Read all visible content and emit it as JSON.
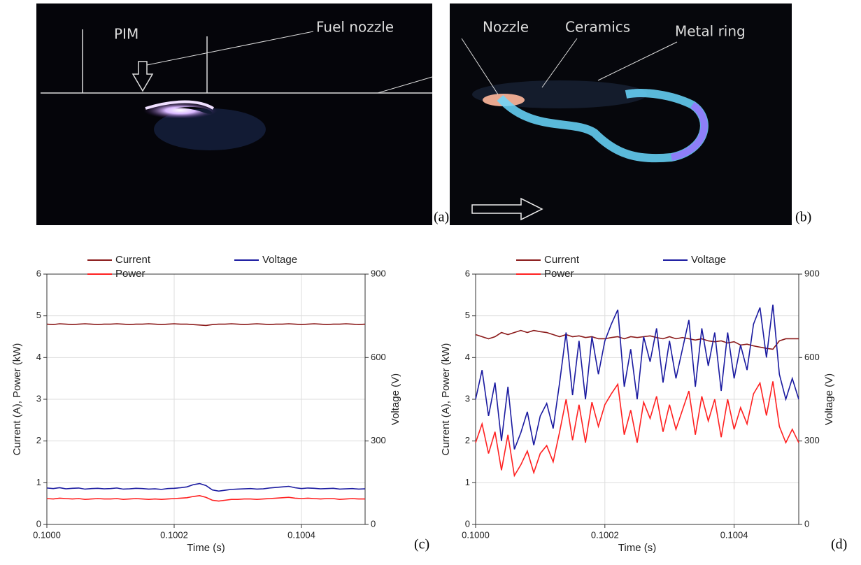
{
  "photos": [
    {
      "label": "(a)",
      "annotations": [
        "PIM",
        "Fuel nozzle"
      ]
    },
    {
      "label": "(b)",
      "annotations": [
        "Nozzle",
        "Ceramics",
        "Metal ring"
      ]
    }
  ],
  "chart_data": [
    {
      "type": "line",
      "label": "(c)",
      "x_label": "Time (s)",
      "y_label": "Current (A), Power (kW)",
      "y2_label": "Voltage (V)",
      "xlim": [
        0.1,
        0.1005
      ],
      "ylim": [
        0,
        6
      ],
      "y2lim": [
        0,
        900
      ],
      "grid": true,
      "legend": "top",
      "xticks": [
        {
          "value": 0.1,
          "label": "0.1000"
        },
        {
          "value": 0.1002,
          "label": "0.1002"
        },
        {
          "value": 0.1004,
          "label": "0.1004"
        }
      ],
      "yticks": [
        0,
        1,
        2,
        3,
        4,
        5,
        6
      ],
      "y2ticks": [
        0,
        300,
        600,
        900
      ],
      "x": [
        0.1,
        0.10001,
        0.10002,
        0.10003,
        0.10004,
        0.10005,
        0.10006,
        0.10007,
        0.10008,
        0.10009,
        0.1001,
        0.10011,
        0.10012,
        0.10013,
        0.10014,
        0.10015,
        0.10016,
        0.10017,
        0.10018,
        0.10019,
        0.1002,
        0.10021,
        0.10022,
        0.10023,
        0.10024,
        0.10025,
        0.10026,
        0.10027,
        0.10028,
        0.10029,
        0.1003,
        0.10031,
        0.10032,
        0.10033,
        0.10034,
        0.10035,
        0.10036,
        0.10037,
        0.10038,
        0.10039,
        0.1004,
        0.10041,
        0.10042,
        0.10043,
        0.10044,
        0.10045,
        0.10046,
        0.10047,
        0.10048,
        0.10049,
        0.1005
      ],
      "series": [
        {
          "name": "Current",
          "color": "#8b1a1a",
          "values": [
            4.8,
            4.79,
            4.81,
            4.8,
            4.79,
            4.8,
            4.81,
            4.8,
            4.79,
            4.8,
            4.8,
            4.81,
            4.8,
            4.79,
            4.8,
            4.8,
            4.81,
            4.8,
            4.79,
            4.8,
            4.81,
            4.8,
            4.8,
            4.79,
            4.78,
            4.77,
            4.79,
            4.8,
            4.8,
            4.81,
            4.8,
            4.79,
            4.8,
            4.81,
            4.8,
            4.79,
            4.8,
            4.8,
            4.81,
            4.8,
            4.79,
            4.8,
            4.81,
            4.8,
            4.79,
            4.8,
            4.8,
            4.81,
            4.8,
            4.79,
            4.8
          ]
        },
        {
          "name": "Voltage",
          "color": "#1a1aa0",
          "axis": "y2",
          "values": [
            131,
            129,
            132,
            128,
            130,
            131,
            127,
            129,
            130,
            128,
            129,
            131,
            127,
            128,
            130,
            129,
            127,
            128,
            126,
            129,
            130,
            132,
            135,
            143,
            147,
            140,
            124,
            120,
            123,
            126,
            127,
            128,
            129,
            127,
            128,
            131,
            133,
            135,
            137,
            132,
            129,
            131,
            130,
            128,
            129,
            130,
            127,
            128,
            129,
            127,
            128
          ]
        },
        {
          "name": "Power",
          "color": "#ff2020",
          "values": [
            0.62,
            0.61,
            0.63,
            0.62,
            0.61,
            0.62,
            0.6,
            0.61,
            0.62,
            0.61,
            0.61,
            0.62,
            0.6,
            0.61,
            0.62,
            0.61,
            0.6,
            0.61,
            0.6,
            0.61,
            0.62,
            0.63,
            0.64,
            0.67,
            0.69,
            0.65,
            0.58,
            0.56,
            0.58,
            0.6,
            0.6,
            0.61,
            0.61,
            0.6,
            0.61,
            0.62,
            0.63,
            0.64,
            0.65,
            0.63,
            0.62,
            0.63,
            0.62,
            0.61,
            0.62,
            0.62,
            0.6,
            0.61,
            0.62,
            0.61,
            0.61
          ]
        }
      ]
    },
    {
      "type": "line",
      "label": "(d)",
      "x_label": "Time (s)",
      "y_label": "Current (A), Power (kW)",
      "y2_label": "Voltage (V)",
      "xlim": [
        0.1,
        0.1005
      ],
      "ylim": [
        0,
        6
      ],
      "y2lim": [
        0,
        900
      ],
      "grid": true,
      "legend": "top",
      "xticks": [
        {
          "value": 0.1,
          "label": "0.1000"
        },
        {
          "value": 0.1002,
          "label": "0.1002"
        },
        {
          "value": 0.1004,
          "label": "0.1004"
        }
      ],
      "yticks": [
        0,
        1,
        2,
        3,
        4,
        5,
        6
      ],
      "y2ticks": [
        0,
        300,
        600,
        900
      ],
      "x": [
        0.1,
        0.10001,
        0.10002,
        0.10003,
        0.10004,
        0.10005,
        0.10006,
        0.10007,
        0.10008,
        0.10009,
        0.1001,
        0.10011,
        0.10012,
        0.10013,
        0.10014,
        0.10015,
        0.10016,
        0.10017,
        0.10018,
        0.10019,
        0.1002,
        0.10021,
        0.10022,
        0.10023,
        0.10024,
        0.10025,
        0.10026,
        0.10027,
        0.10028,
        0.10029,
        0.1003,
        0.10031,
        0.10032,
        0.10033,
        0.10034,
        0.10035,
        0.10036,
        0.10037,
        0.10038,
        0.10039,
        0.1004,
        0.10041,
        0.10042,
        0.10043,
        0.10044,
        0.10045,
        0.10046,
        0.10047,
        0.10048,
        0.10049,
        0.1005
      ],
      "series": [
        {
          "name": "Current",
          "color": "#8b1a1a",
          "values": [
            4.55,
            4.5,
            4.45,
            4.5,
            4.6,
            4.55,
            4.6,
            4.65,
            4.6,
            4.65,
            4.62,
            4.6,
            4.55,
            4.5,
            4.55,
            4.5,
            4.52,
            4.48,
            4.5,
            4.45,
            4.45,
            4.48,
            4.5,
            4.45,
            4.5,
            4.48,
            4.5,
            4.52,
            4.48,
            4.45,
            4.5,
            4.45,
            4.48,
            4.45,
            4.42,
            4.45,
            4.4,
            4.38,
            4.4,
            4.35,
            4.38,
            4.3,
            4.32,
            4.28,
            4.25,
            4.22,
            4.2,
            4.4,
            4.45,
            4.45,
            4.45
          ]
        },
        {
          "name": "Voltage",
          "color": "#1a1aa0",
          "axis": "y2",
          "values": [
            450,
            555,
            390,
            510,
            300,
            495,
            270,
            330,
            405,
            285,
            390,
            435,
            345,
            510,
            690,
            465,
            660,
            450,
            675,
            540,
            660,
            720,
            772,
            495,
            630,
            450,
            675,
            585,
            705,
            510,
            660,
            525,
            630,
            735,
            495,
            705,
            570,
            690,
            480,
            690,
            525,
            645,
            555,
            720,
            780,
            600,
            790,
            540,
            450,
            525,
            450
          ]
        },
        {
          "name": "Power",
          "color": "#ff2020",
          "values": [
            1.96,
            2.41,
            1.7,
            2.22,
            1.3,
            2.15,
            1.17,
            1.43,
            1.76,
            1.24,
            1.7,
            1.89,
            1.5,
            2.22,
            3.0,
            2.02,
            2.87,
            1.96,
            2.93,
            2.35,
            2.87,
            3.13,
            3.36,
            2.15,
            2.74,
            1.96,
            2.93,
            2.54,
            3.07,
            2.22,
            2.87,
            2.28,
            2.74,
            3.2,
            2.15,
            3.07,
            2.48,
            3.0,
            2.09,
            3.0,
            2.28,
            2.8,
            2.41,
            3.13,
            3.39,
            2.61,
            3.43,
            2.35,
            1.96,
            2.28,
            1.96
          ]
        }
      ]
    }
  ]
}
